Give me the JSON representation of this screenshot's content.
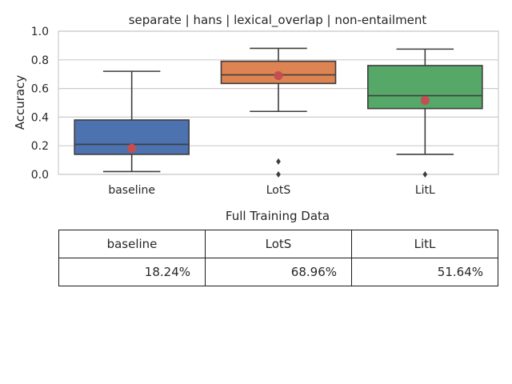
{
  "chart_data": {
    "type": "box",
    "title": "separate | hans | lexical_overlap | non-entailment",
    "xlabel": "",
    "ylabel": "Accuracy",
    "ylim": [
      0.0,
      1.0
    ],
    "yticks": [
      "0.0",
      "0.2",
      "0.4",
      "0.6",
      "0.8",
      "1.0"
    ],
    "grid": true,
    "categories": [
      "baseline",
      "LotS",
      "LitL"
    ],
    "colors": [
      "#4c72b0",
      "#dd8452",
      "#55a868"
    ],
    "mean_marker_color": "#c44e52",
    "boxes": [
      {
        "name": "baseline",
        "whisker_low": 0.02,
        "q1": 0.14,
        "median": 0.21,
        "q3": 0.38,
        "whisker_high": 0.72,
        "mean": 0.1824,
        "outliers": []
      },
      {
        "name": "LotS",
        "whisker_low": 0.44,
        "q1": 0.635,
        "median": 0.695,
        "q3": 0.79,
        "whisker_high": 0.88,
        "mean": 0.6896,
        "outliers": [
          0.09,
          0.0
        ]
      },
      {
        "name": "LitL",
        "whisker_low": 0.14,
        "q1": 0.46,
        "median": 0.55,
        "q3": 0.76,
        "whisker_high": 0.875,
        "mean": 0.5164,
        "outliers": [
          0.0
        ]
      }
    ]
  },
  "table": {
    "caption": "Full Training Data",
    "headers": [
      "baseline",
      "LotS",
      "LitL"
    ],
    "values": [
      "18.24%",
      "68.96%",
      "51.64%"
    ]
  }
}
